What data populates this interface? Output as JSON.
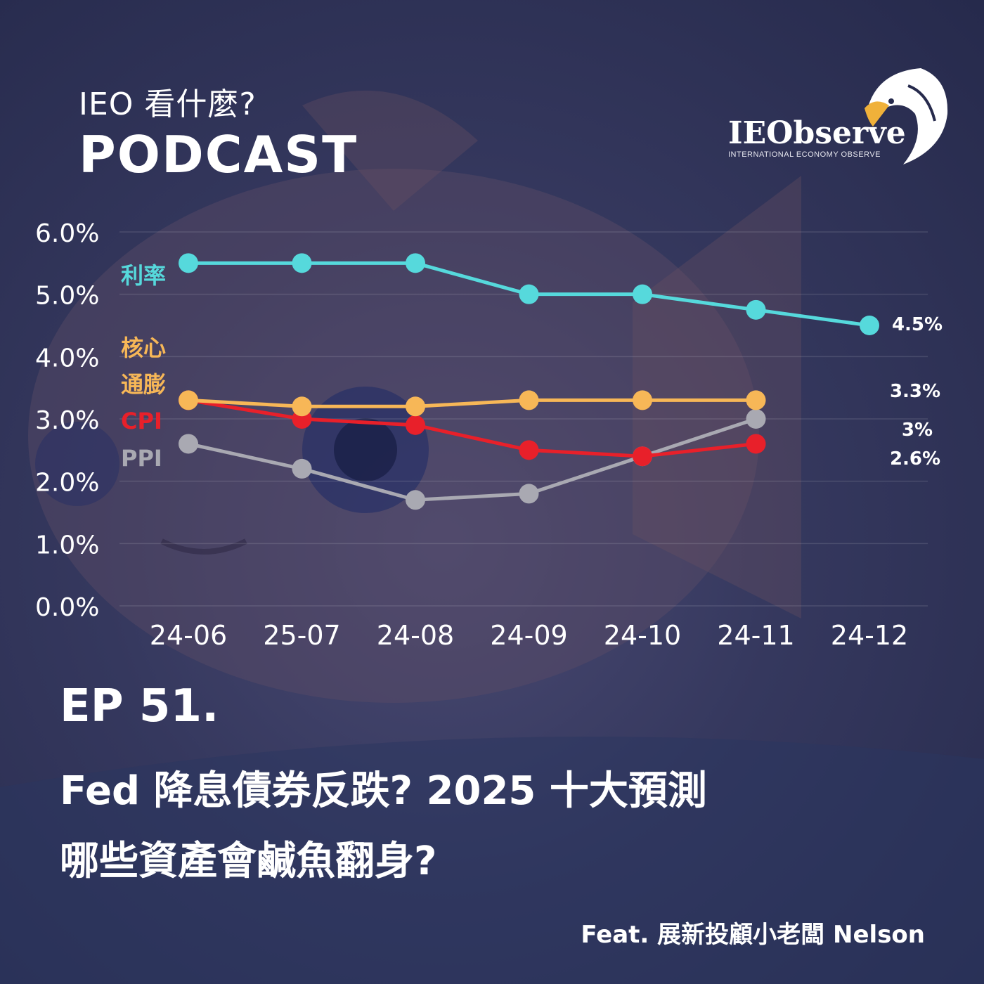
{
  "header": {
    "line1": "IEO 看什麼?",
    "line2": "PODCAST"
  },
  "logo": {
    "name": "IEObserve",
    "tagline": "INTERNATIONAL ECONOMY OBSERVE",
    "icon": "eagle-icon"
  },
  "chart_data": {
    "type": "line",
    "categories": [
      "24-06",
      "25-07",
      "24-08",
      "24-09",
      "24-10",
      "24-11",
      "24-12"
    ],
    "y_ticks": [
      "0.0%",
      "1.0%",
      "2.0%",
      "3.0%",
      "4.0%",
      "5.0%",
      "6.0%"
    ],
    "ylim": [
      0,
      6
    ],
    "grid": true,
    "series": [
      {
        "name": "利率",
        "color": "#56d9dc",
        "values": [
          5.5,
          5.5,
          5.5,
          5.0,
          5.0,
          4.75,
          4.5
        ]
      },
      {
        "name": "核心通膨",
        "label_lines": [
          "核心",
          "通膨"
        ],
        "color": "#f7b757",
        "values": [
          3.3,
          3.2,
          3.2,
          3.3,
          3.3,
          3.3,
          null
        ]
      },
      {
        "name": "CPI",
        "color": "#e8202a",
        "values": [
          3.3,
          3.0,
          2.9,
          2.5,
          2.4,
          2.6,
          null
        ]
      },
      {
        "name": "PPI",
        "color": "#a9a9b2",
        "values": [
          2.6,
          2.2,
          1.7,
          1.8,
          2.4,
          3.0,
          null
        ]
      }
    ],
    "end_labels": [
      "4.5%",
      "3.3%",
      "3%",
      "2.6%"
    ]
  },
  "episode": {
    "number": "EP 51.",
    "title_line1": "Fed 降息債券反跌?  2025 十大預測",
    "title_line2": "哪些資產會鹹魚翻身?",
    "feat": "Feat. 展新投顧小老闆 Nelson"
  }
}
